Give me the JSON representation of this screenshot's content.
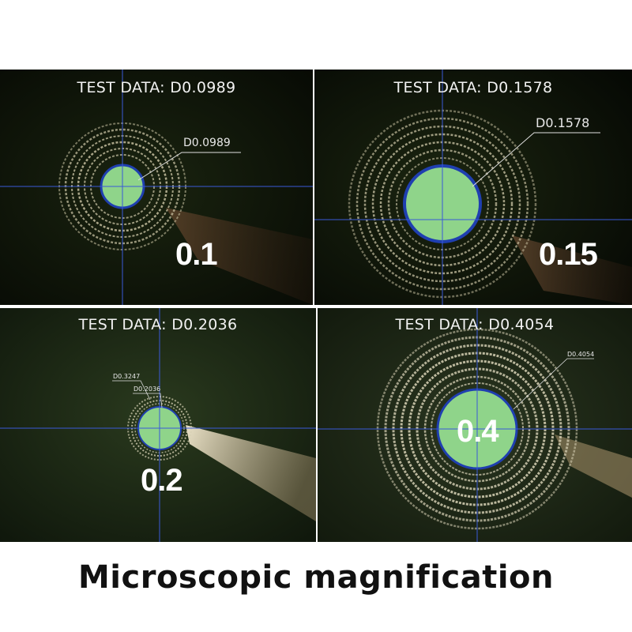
{
  "panels": [
    {
      "test_label": "TEST DATA: D0.0989",
      "callouts": [
        "D0.0989"
      ],
      "size_label": "0.1"
    },
    {
      "test_label": "TEST DATA: D0.1578",
      "callouts": [
        "D0.1578"
      ],
      "size_label": "0.15"
    },
    {
      "test_label": "TEST DATA: D0.2036",
      "callouts": [
        "D0.3247",
        "D0.2036"
      ],
      "size_label": "0.2"
    },
    {
      "test_label": "TEST DATA: D0.4054",
      "callouts": [
        "D0.4054"
      ],
      "size_label": "0.4"
    }
  ],
  "caption": "Microscopic magnification",
  "colors": {
    "hole_fill": "#8fd48a",
    "hole_ring": "#1f3fb0",
    "crosshair": "#3a5ad8",
    "background_dark": "#0c1208",
    "background_green": "#1d2a14"
  }
}
